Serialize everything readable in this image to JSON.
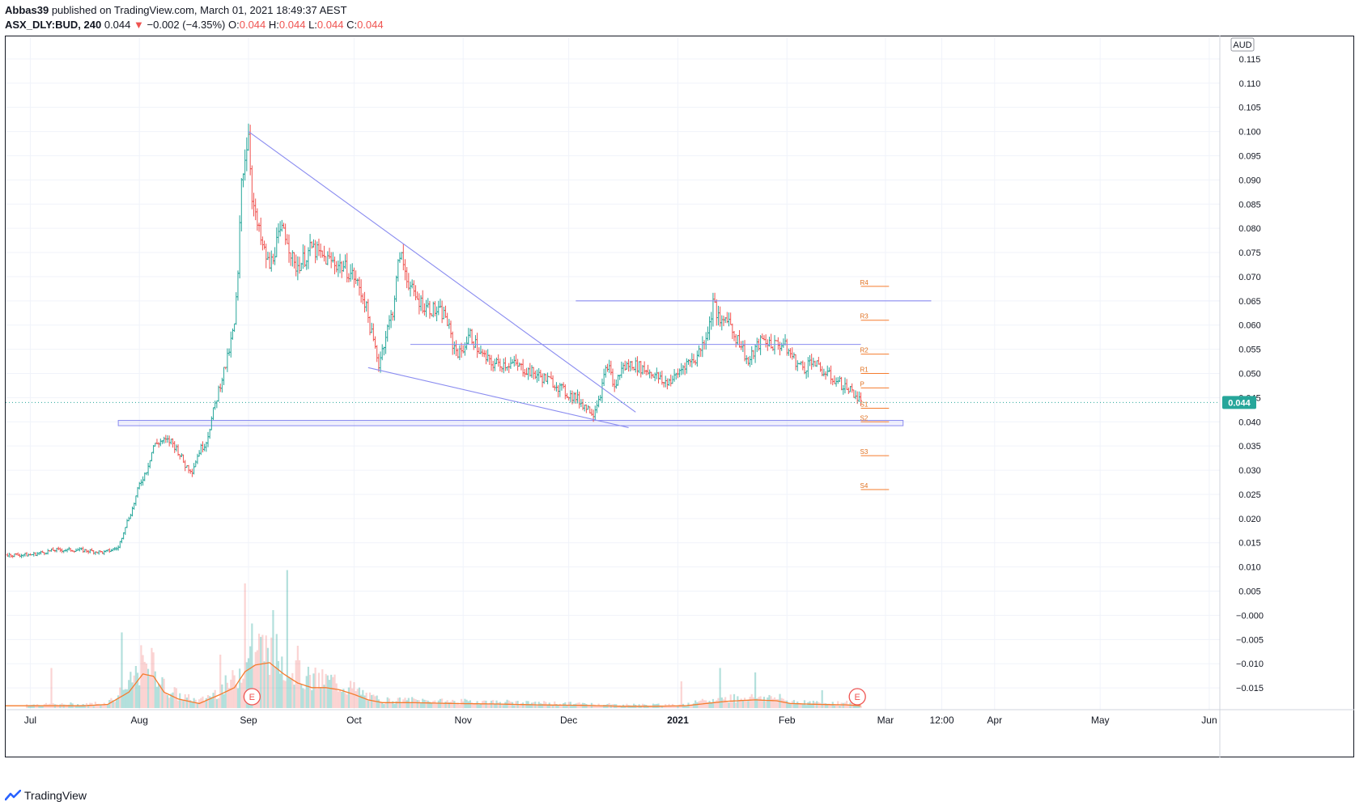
{
  "header": {
    "author": "Abbas39",
    "published_text": "published on TradingView.com, March 01, 2021 18:49:37 AEST",
    "symbol": "ASX_DLY:BUD, 240",
    "last": "0.044",
    "change_arrow": "▼",
    "change": "−0.002 (−4.35%)",
    "o_label": "O:",
    "o_value": "0.044",
    "h_label": "H:",
    "h_value": "0.044",
    "l_label": "L:",
    "l_value": "0.044",
    "c_label": "C:",
    "c_value": "0.044"
  },
  "footer": {
    "brand": "TradingView"
  },
  "chart_data": {
    "type": "candlestick",
    "currency": "AUD",
    "last_price_label": "0.044",
    "last_price": 0.044,
    "y_ticks": [
      "0.115",
      "0.110",
      "0.105",
      "0.100",
      "0.095",
      "0.090",
      "0.085",
      "0.080",
      "0.075",
      "0.070",
      "0.065",
      "0.060",
      "0.055",
      "0.050",
      "0.045",
      "0.040",
      "0.035",
      "0.030",
      "0.025",
      "0.020",
      "0.015",
      "0.010",
      "0.005",
      "−0.000",
      "−0.005",
      "−0.010",
      "−0.015"
    ],
    "ylim": [
      -0.0195,
      0.1195
    ],
    "x_ticks": [
      {
        "label": "Jul",
        "day": 0
      },
      {
        "label": "Aug",
        "day": 31
      },
      {
        "label": "Sep",
        "day": 62
      },
      {
        "label": "Oct",
        "day": 92
      },
      {
        "label": "Nov",
        "day": 123
      },
      {
        "label": "Dec",
        "day": 153
      },
      {
        "label": "2021",
        "day": 184
      },
      {
        "label": "Feb",
        "day": 215
      },
      {
        "label": "Mar",
        "day": 243
      },
      {
        "label": "12:00",
        "day": 259
      },
      {
        "label": "Apr",
        "day": 274
      },
      {
        "label": "May",
        "day": 304
      },
      {
        "label": "Jun",
        "day": 335
      }
    ],
    "x_range_days": [
      -7,
      338
    ],
    "price_path": [
      [
        -7,
        0.0125
      ],
      [
        0,
        0.0125
      ],
      [
        7,
        0.0135
      ],
      [
        14,
        0.0135
      ],
      [
        21,
        0.013
      ],
      [
        25,
        0.014
      ],
      [
        27,
        0.0185
      ],
      [
        29,
        0.022
      ],
      [
        31,
        0.027
      ],
      [
        33,
        0.03
      ],
      [
        35,
        0.035
      ],
      [
        37,
        0.036
      ],
      [
        40,
        0.036
      ],
      [
        42,
        0.034
      ],
      [
        44,
        0.031
      ],
      [
        46,
        0.03
      ],
      [
        48,
        0.034
      ],
      [
        50,
        0.036
      ],
      [
        52,
        0.042
      ],
      [
        54,
        0.048
      ],
      [
        56,
        0.053
      ],
      [
        58,
        0.06
      ],
      [
        59,
        0.07
      ],
      [
        60,
        0.09
      ],
      [
        61,
        0.095
      ],
      [
        62,
        0.1
      ],
      [
        63,
        0.087
      ],
      [
        64,
        0.082
      ],
      [
        66,
        0.076
      ],
      [
        68,
        0.072
      ],
      [
        70,
        0.077
      ],
      [
        72,
        0.08
      ],
      [
        73,
        0.078
      ],
      [
        75,
        0.072
      ],
      [
        77,
        0.073
      ],
      [
        80,
        0.076
      ],
      [
        83,
        0.074
      ],
      [
        86,
        0.073
      ],
      [
        89,
        0.072
      ],
      [
        92,
        0.07
      ],
      [
        95,
        0.065
      ],
      [
        97,
        0.058
      ],
      [
        99,
        0.052
      ],
      [
        101,
        0.058
      ],
      [
        103,
        0.063
      ],
      [
        105,
        0.075
      ],
      [
        107,
        0.07
      ],
      [
        109,
        0.066
      ],
      [
        112,
        0.064
      ],
      [
        115,
        0.063
      ],
      [
        118,
        0.062
      ],
      [
        120,
        0.056
      ],
      [
        122,
        0.054
      ],
      [
        125,
        0.058
      ],
      [
        128,
        0.054
      ],
      [
        131,
        0.052
      ],
      [
        134,
        0.052
      ],
      [
        137,
        0.052
      ],
      [
        140,
        0.051
      ],
      [
        143,
        0.05
      ],
      [
        146,
        0.049
      ],
      [
        149,
        0.048
      ],
      [
        152,
        0.046
      ],
      [
        155,
        0.045
      ],
      [
        158,
        0.043
      ],
      [
        160,
        0.042
      ],
      [
        162,
        0.046
      ],
      [
        164,
        0.052
      ],
      [
        166,
        0.047
      ],
      [
        168,
        0.051
      ],
      [
        171,
        0.052
      ],
      [
        174,
        0.051
      ],
      [
        177,
        0.05
      ],
      [
        180,
        0.048
      ],
      [
        183,
        0.049
      ],
      [
        186,
        0.052
      ],
      [
        189,
        0.053
      ],
      [
        191,
        0.056
      ],
      [
        193,
        0.06
      ],
      [
        194,
        0.065
      ],
      [
        196,
        0.06
      ],
      [
        198,
        0.062
      ],
      [
        200,
        0.058
      ],
      [
        202,
        0.056
      ],
      [
        204,
        0.052
      ],
      [
        206,
        0.055
      ],
      [
        208,
        0.057
      ],
      [
        211,
        0.056
      ],
      [
        214,
        0.056
      ],
      [
        216,
        0.054
      ],
      [
        218,
        0.052
      ],
      [
        220,
        0.051
      ],
      [
        222,
        0.053
      ],
      [
        224,
        0.051
      ],
      [
        226,
        0.05
      ],
      [
        228,
        0.049
      ],
      [
        230,
        0.048
      ],
      [
        232,
        0.047
      ],
      [
        234,
        0.046
      ],
      [
        236,
        0.044
      ]
    ],
    "volume_path": [
      [
        -7,
        0.05
      ],
      [
        8,
        0.05
      ],
      [
        15,
        0.05
      ],
      [
        22,
        0.08
      ],
      [
        28,
        0.35
      ],
      [
        32,
        0.75
      ],
      [
        35,
        0.7
      ],
      [
        38,
        0.35
      ],
      [
        42,
        0.2
      ],
      [
        48,
        0.1
      ],
      [
        54,
        0.3
      ],
      [
        58,
        0.45
      ],
      [
        61,
        0.8
      ],
      [
        64,
        0.95
      ],
      [
        68,
        1.0
      ],
      [
        72,
        0.75
      ],
      [
        76,
        0.55
      ],
      [
        80,
        0.45
      ],
      [
        84,
        0.45
      ],
      [
        88,
        0.4
      ],
      [
        92,
        0.3
      ],
      [
        96,
        0.18
      ],
      [
        100,
        0.12
      ],
      [
        108,
        0.12
      ],
      [
        120,
        0.1
      ],
      [
        132,
        0.09
      ],
      [
        144,
        0.07
      ],
      [
        156,
        0.06
      ],
      [
        168,
        0.04
      ],
      [
        178,
        0.04
      ],
      [
        186,
        0.05
      ],
      [
        192,
        0.1
      ],
      [
        198,
        0.15
      ],
      [
        206,
        0.18
      ],
      [
        212,
        0.16
      ],
      [
        216,
        0.1
      ],
      [
        224,
        0.08
      ],
      [
        232,
        0.07
      ],
      [
        236,
        0.05
      ]
    ],
    "volume_peaks": [
      [
        6,
        0.9
      ],
      [
        26,
        1.7
      ],
      [
        33,
        1.0
      ],
      [
        54,
        1.2
      ],
      [
        61,
        2.8
      ],
      [
        63,
        1.9
      ],
      [
        69,
        2.2
      ],
      [
        73,
        3.1
      ],
      [
        76,
        1.4
      ],
      [
        185,
        0.6
      ],
      [
        196,
        0.9
      ],
      [
        206,
        0.8
      ],
      [
        225,
        0.4
      ]
    ],
    "earnings_markers": [
      {
        "label": "E",
        "day": 63
      },
      {
        "label": "E",
        "day": 235
      }
    ],
    "trendlines": [
      {
        "name": "descending-resistance",
        "from": [
          62,
          0.1
        ],
        "to": [
          172,
          0.042
        ]
      },
      {
        "name": "falling-support",
        "from": [
          96,
          0.0512
        ],
        "to": [
          170,
          0.0388
        ]
      },
      {
        "name": "resistance-high",
        "from": [
          155,
          0.065
        ],
        "to": [
          256,
          0.065
        ]
      },
      {
        "name": "resistance-mid",
        "from": [
          108,
          0.056
        ],
        "to": [
          236,
          0.056
        ]
      }
    ],
    "support_zone": {
      "from_day": 25,
      "to_day": 248,
      "top": 0.0403,
      "bottom": 0.0392
    },
    "pivots": [
      {
        "label": "R4",
        "value": 0.068
      },
      {
        "label": "R3",
        "value": 0.061
      },
      {
        "label": "R2",
        "value": 0.054
      },
      {
        "label": "R1",
        "value": 0.05
      },
      {
        "label": "P",
        "value": 0.047
      },
      {
        "label": "S1",
        "value": 0.0428
      },
      {
        "label": "S2",
        "value": 0.04
      },
      {
        "label": "S3",
        "value": 0.033
      },
      {
        "label": "S4",
        "value": 0.026
      }
    ],
    "pivot_range_days": [
      236,
      244
    ]
  },
  "colors": {
    "up": "#26a69a",
    "down": "#ef5350",
    "volume_ma": "#f57c2e",
    "trendline": "#8a8cf0",
    "zone_fill": "rgba(140,140,240,0.12)",
    "pivot": "#f57c2e",
    "pivot_text": "#e0701f",
    "grid": "#f0f3fa",
    "axis_text": "#131722",
    "last_price_bg": "#26a69a"
  }
}
